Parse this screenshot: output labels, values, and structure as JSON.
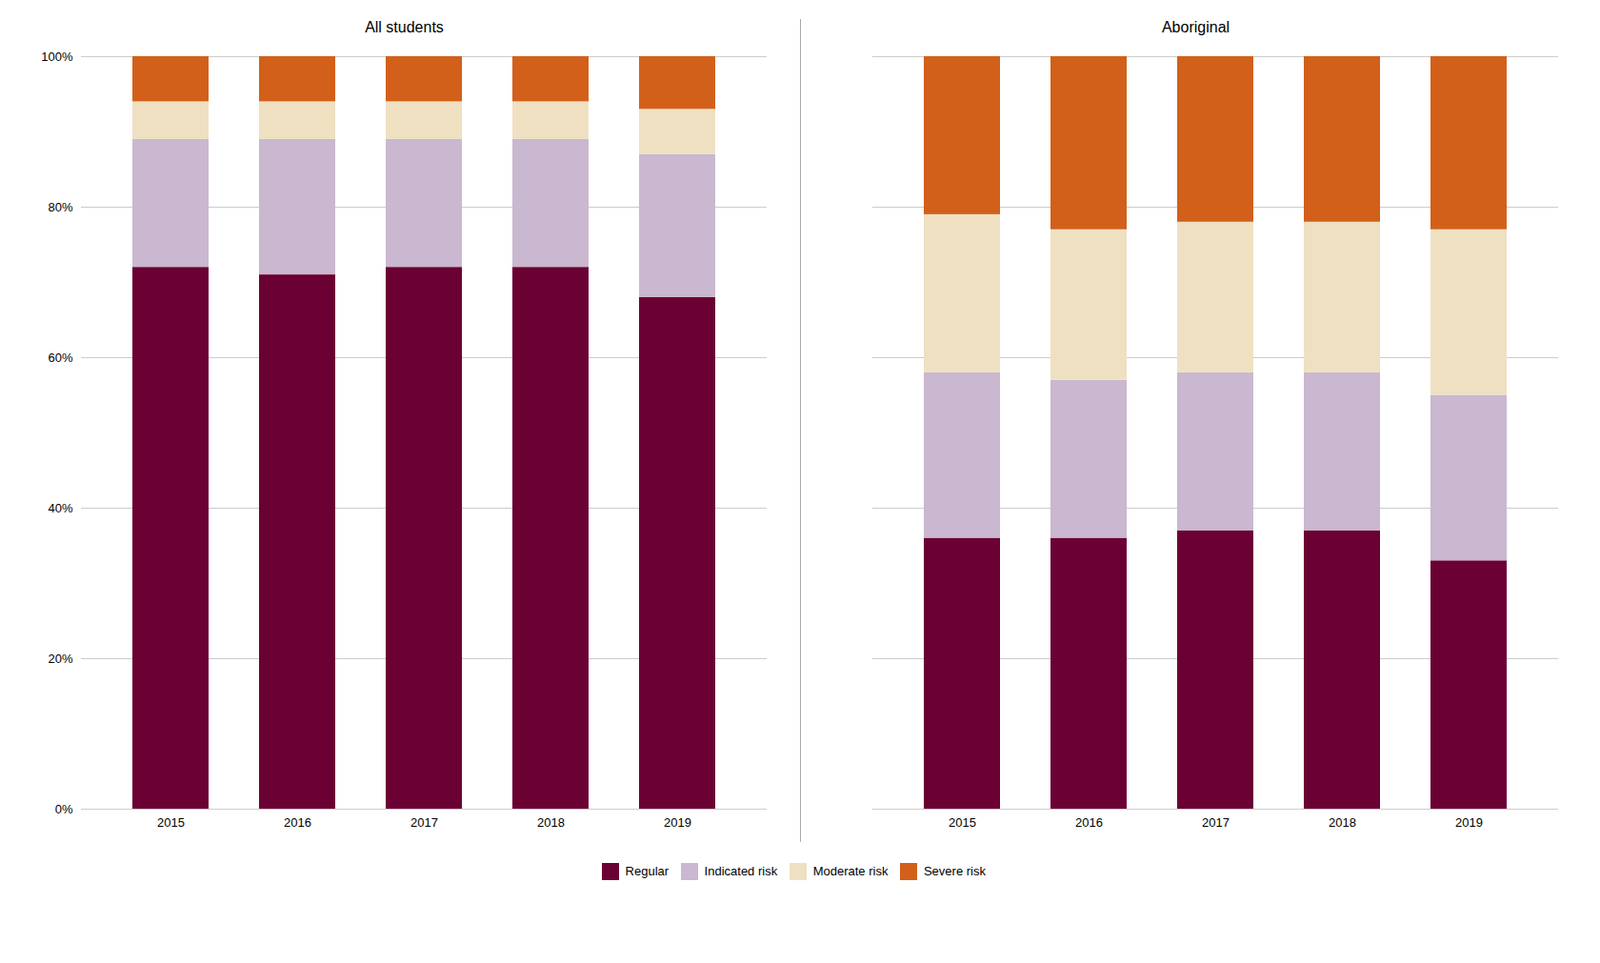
{
  "chart_data": [
    {
      "type": "bar",
      "stacked": true,
      "title": "All students",
      "categories": [
        "2015",
        "2016",
        "2017",
        "2018",
        "2019"
      ],
      "series": [
        {
          "name": "Regular",
          "color": "#6B0033",
          "values": [
            72,
            71,
            72,
            72,
            68
          ]
        },
        {
          "name": "Indicated risk",
          "color": "#C9B8CF",
          "values": [
            17,
            18,
            17,
            17,
            19
          ]
        },
        {
          "name": "Moderate risk",
          "color": "#EFE0C2",
          "values": [
            5,
            5,
            5,
            5,
            6
          ]
        },
        {
          "name": "Severe risk",
          "color": "#D2601A",
          "values": [
            6,
            6,
            6,
            6,
            7
          ]
        }
      ],
      "ylim": [
        0,
        100
      ],
      "yticks": [
        {
          "value": 0,
          "label": "0%"
        },
        {
          "value": 20,
          "label": "20%"
        },
        {
          "value": 40,
          "label": "40%"
        },
        {
          "value": 60,
          "label": "60%"
        },
        {
          "value": 80,
          "label": "80%"
        },
        {
          "value": 100,
          "label": "100%"
        }
      ],
      "grid": true,
      "legend": "bottom"
    },
    {
      "type": "bar",
      "stacked": true,
      "title": "Aboriginal",
      "categories": [
        "2015",
        "2016",
        "2017",
        "2018",
        "2019"
      ],
      "series": [
        {
          "name": "Regular",
          "color": "#6B0033",
          "values": [
            36,
            36,
            37,
            37,
            33
          ]
        },
        {
          "name": "Indicated risk",
          "color": "#C9B8CF",
          "values": [
            22,
            21,
            21,
            21,
            22
          ]
        },
        {
          "name": "Moderate risk",
          "color": "#EFE0C2",
          "values": [
            21,
            20,
            20,
            20,
            22
          ]
        },
        {
          "name": "Severe risk",
          "color": "#D2601A",
          "values": [
            21,
            23,
            22,
            22,
            23
          ]
        }
      ],
      "ylim": [
        0,
        100
      ],
      "yticks": [
        0,
        20,
        40,
        60,
        80,
        100
      ],
      "grid": true,
      "tick_labels": "x"
    }
  ]
}
